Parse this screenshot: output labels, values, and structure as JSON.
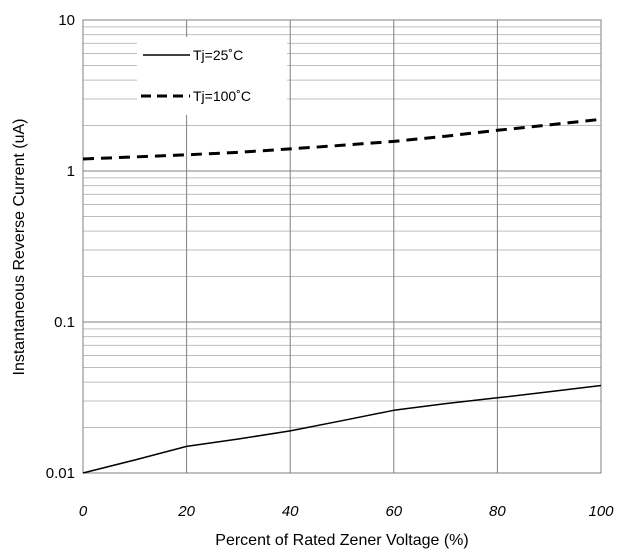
{
  "chart_data": {
    "type": "line",
    "title": "",
    "xlabel": "Percent of Rated Zener Voltage (%)",
    "ylabel": "Instantaneous Reverse Current (uA)",
    "xlim": [
      0,
      100
    ],
    "ylim": [
      0.01,
      10
    ],
    "yscale": "log",
    "grid": true,
    "legend_position": "top-left",
    "x_ticks": [
      "0",
      "20",
      "40",
      "60",
      "80",
      "100"
    ],
    "y_ticks": [
      "0.01",
      "0.1",
      "1",
      "10"
    ],
    "series": [
      {
        "name": "Tj=25˚C",
        "style": "solid",
        "x": [
          0,
          10,
          20,
          30,
          40,
          50,
          60,
          70,
          80,
          90,
          100
        ],
        "y": [
          0.01,
          0.0122,
          0.015,
          0.0168,
          0.019,
          0.0222,
          0.026,
          0.0288,
          0.0315,
          0.0345,
          0.038
        ]
      },
      {
        "name": "Tj=100˚C",
        "style": "dashed",
        "x": [
          0,
          10,
          20,
          30,
          40,
          50,
          60,
          70,
          80,
          90,
          100
        ],
        "y": [
          1.2,
          1.24,
          1.28,
          1.33,
          1.4,
          1.48,
          1.57,
          1.7,
          1.86,
          2.02,
          2.2
        ]
      }
    ]
  }
}
